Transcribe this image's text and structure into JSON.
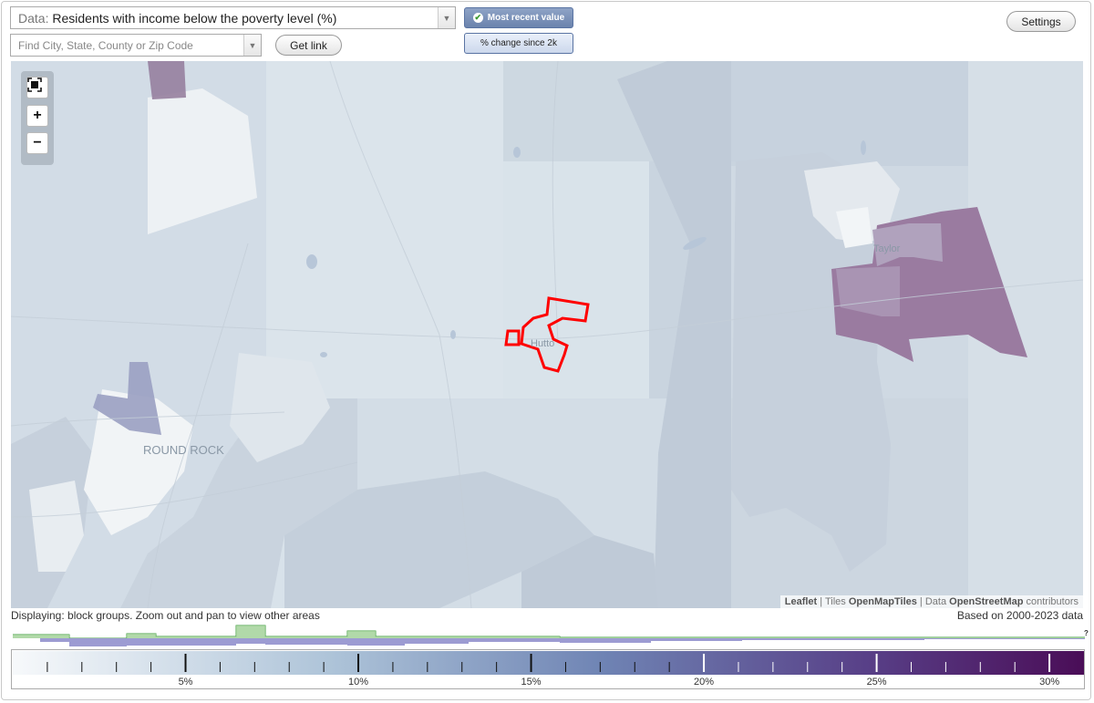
{
  "data_select": {
    "prefix": "Data:",
    "value": "Residents with income below the poverty level (%)"
  },
  "search": {
    "placeholder": "Find City, State, County or Zip Code"
  },
  "buttons": {
    "get_link": "Get link",
    "settings": "Settings"
  },
  "view_toggle": {
    "most_recent": "Most recent value",
    "pct_change": "% change since 2k",
    "selected": "most_recent"
  },
  "map": {
    "labels": {
      "round_rock": "ROUND ROCK",
      "hutto": "Hutto",
      "taylor": "Taylor"
    },
    "attribution": {
      "leaflet": "Leaflet",
      "tiles_prefix": "Tiles",
      "tiles": "OpenMapTiles",
      "data_prefix": "Data",
      "data": "OpenStreetMap",
      "suffix": "contributors"
    },
    "zoom": {
      "fullscreen": "fullscreen-icon",
      "zoom_in": "+",
      "zoom_out": "−"
    }
  },
  "status": {
    "displaying": "Displaying: block groups. Zoom out and pan to view other areas",
    "based_on": "Based on 2000-2023 data"
  },
  "histogram_help": "?",
  "legend": {
    "min": 0,
    "max": 31,
    "labels": [
      "5%",
      "10%",
      "15%",
      "20%",
      "25%",
      "30%"
    ],
    "label_values": [
      5,
      10,
      15,
      20,
      25,
      30
    ]
  },
  "colors": {
    "highlight": "#ff0000",
    "scale_low": "#f7f9fb",
    "scale_mid": "#8fa6c8",
    "scale_high": "#4a0d57"
  }
}
